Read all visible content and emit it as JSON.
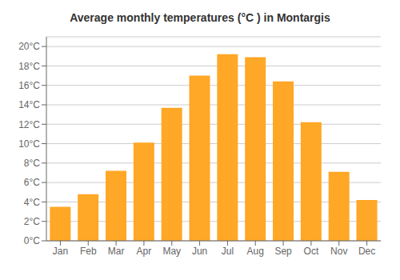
{
  "chart_data": {
    "type": "bar",
    "title": "Average monthly temperatures (°C ) in Montargis",
    "categories": [
      "Jan",
      "Feb",
      "Mar",
      "Apr",
      "May",
      "Jun",
      "Jul",
      "Aug",
      "Sep",
      "Oct",
      "Nov",
      "Dec"
    ],
    "values": [
      3.5,
      4.8,
      7.2,
      10.1,
      13.7,
      17.0,
      19.2,
      18.9,
      16.4,
      12.2,
      7.1,
      4.2
    ],
    "color": "#FFA726",
    "ylim": [
      0,
      21
    ],
    "yticks": [
      {
        "value": 0,
        "label": "0°C"
      },
      {
        "value": 2,
        "label": "2°C"
      },
      {
        "value": 4,
        "label": "4°C"
      },
      {
        "value": 6,
        "label": "6°C"
      },
      {
        "value": 8,
        "label": "8°C"
      },
      {
        "value": 10,
        "label": "10°C"
      },
      {
        "value": 12,
        "label": "12°C"
      },
      {
        "value": 14,
        "label": "14°C"
      },
      {
        "value": 16,
        "label": "16°C"
      },
      {
        "value": 18,
        "label": "18°C"
      },
      {
        "value": 20,
        "label": "20°C"
      }
    ],
    "grid": true
  }
}
